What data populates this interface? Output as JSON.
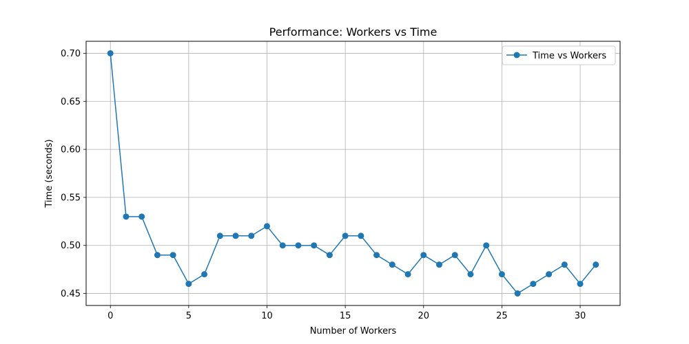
{
  "chart_data": {
    "type": "line",
    "title": "Performance: Workers vs Time",
    "xlabel": "Number of Workers",
    "ylabel": "Time (seconds)",
    "xlim": [
      -1.55,
      32.55
    ],
    "ylim": [
      0.4375,
      0.7125
    ],
    "xticks": [
      0,
      5,
      10,
      15,
      20,
      25,
      30
    ],
    "xtick_labels": [
      "0",
      "5",
      "10",
      "15",
      "20",
      "25",
      "30"
    ],
    "yticks": [
      0.45,
      0.5,
      0.55,
      0.6,
      0.65,
      0.7
    ],
    "ytick_labels": [
      "0.45",
      "0.50",
      "0.55",
      "0.60",
      "0.65",
      "0.70"
    ],
    "grid": true,
    "legend_position": "top-right",
    "series": [
      {
        "name": "Time vs Workers",
        "color": "#1f77b4",
        "marker": "circle",
        "x": [
          0,
          1,
          2,
          3,
          4,
          5,
          6,
          7,
          8,
          9,
          10,
          11,
          12,
          13,
          14,
          15,
          16,
          17,
          18,
          19,
          20,
          21,
          22,
          23,
          24,
          25,
          26,
          27,
          28,
          29,
          30,
          31
        ],
        "y": [
          0.7,
          0.53,
          0.53,
          0.49,
          0.49,
          0.46,
          0.47,
          0.51,
          0.51,
          0.51,
          0.52,
          0.5,
          0.5,
          0.5,
          0.49,
          0.51,
          0.51,
          0.49,
          0.48,
          0.47,
          0.49,
          0.48,
          0.49,
          0.47,
          0.5,
          0.47,
          0.45,
          0.46,
          0.47,
          0.48,
          0.46,
          0.48
        ]
      }
    ]
  }
}
